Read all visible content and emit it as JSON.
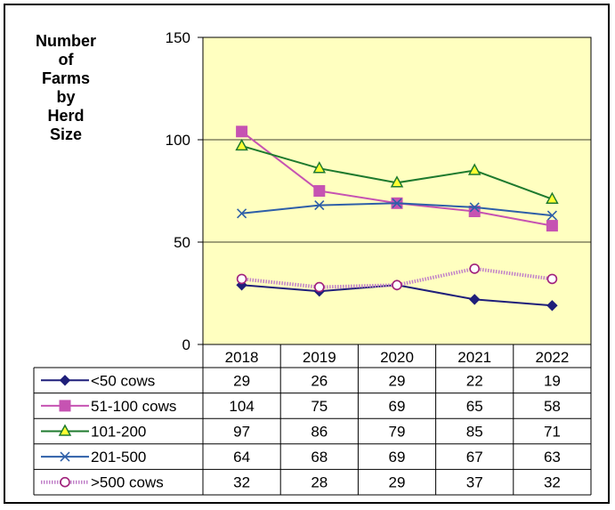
{
  "chart_data": {
    "type": "line",
    "title_lines": [
      "Number",
      "of",
      "Farms",
      "by",
      "Herd",
      "Size"
    ],
    "x": [
      "2018",
      "2019",
      "2020",
      "2021",
      "2022"
    ],
    "y_ticks": [
      "0",
      "50",
      "100",
      "150"
    ],
    "ylim": [
      0,
      150
    ],
    "grid": true,
    "legend": "data-table-below",
    "plot_background": "#FFFFC0",
    "series": [
      {
        "name": "<50 cows",
        "values": [
          29,
          26,
          29,
          22,
          19
        ],
        "color": "#1F1F7A",
        "marker": "diamond"
      },
      {
        "name": "51-100 cows",
        "values": [
          104,
          75,
          69,
          65,
          58
        ],
        "color": "#C653B2",
        "marker": "square"
      },
      {
        "name": "101-200",
        "values": [
          97,
          86,
          79,
          85,
          71
        ],
        "color": "#1E7A2E",
        "marker": "triangle"
      },
      {
        "name": "201-500",
        "values": [
          64,
          68,
          69,
          67,
          63
        ],
        "color": "#2E5FA8",
        "marker": "x"
      },
      {
        "name": ">500 cows",
        "values": [
          32,
          28,
          29,
          37,
          32
        ],
        "color": "#A0207A",
        "marker": "circle"
      }
    ]
  }
}
